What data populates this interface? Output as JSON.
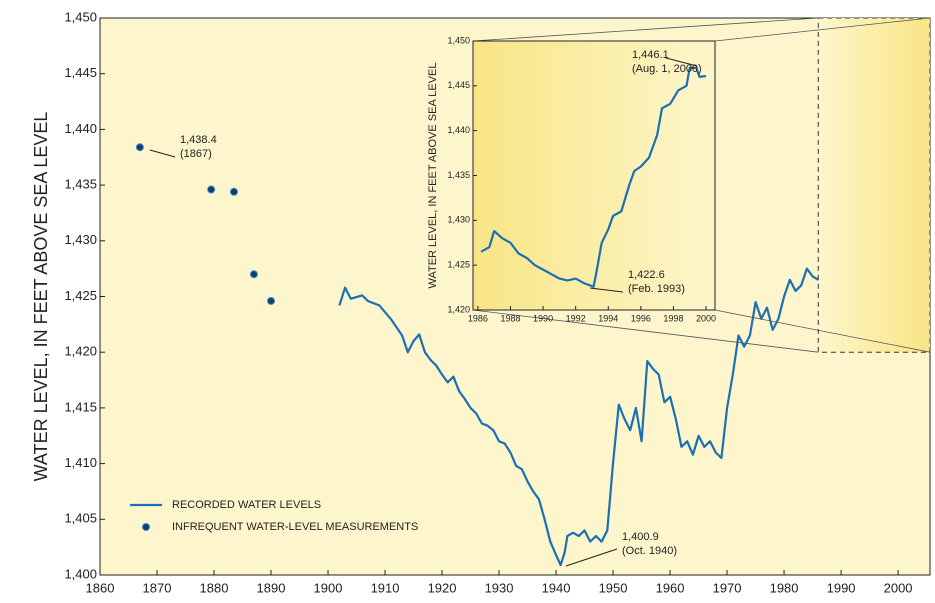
{
  "chart_data": [
    {
      "type": "line",
      "y_label": "WATER LEVEL, IN FEET ABOVE SEA LEVEL",
      "xlim": [
        1860,
        2005.6
      ],
      "ylim": [
        1400,
        1450
      ],
      "xticks": [
        1860,
        1870,
        1880,
        1890,
        1900,
        1910,
        1920,
        1930,
        1940,
        1950,
        1960,
        1970,
        1980,
        1990,
        2000
      ],
      "yticks": [
        {
          "value": 1400,
          "label": "1,400"
        },
        {
          "value": 1405,
          "label": "1,405"
        },
        {
          "value": 1410,
          "label": "1,410"
        },
        {
          "value": 1415,
          "label": "1,415"
        },
        {
          "value": 1420,
          "label": "1,420"
        },
        {
          "value": 1425,
          "label": "1,425"
        },
        {
          "value": 1430,
          "label": "1,430"
        },
        {
          "value": 1435,
          "label": "1,435"
        },
        {
          "value": 1440,
          "label": "1,440"
        },
        {
          "value": 1445,
          "label": "1,445"
        },
        {
          "value": 1450,
          "label": "1,450"
        }
      ],
      "background": "#fdf6cc",
      "series": [
        {
          "name": "RECORDED WATER LEVELS",
          "type": "line",
          "color": "#1a6fb5",
          "x": [
            1902,
            1903,
            1904,
            1906,
            1907,
            1909,
            1911,
            1913,
            1914,
            1915,
            1916,
            1917,
            1918,
            1919,
            1920,
            1921,
            1922,
            1923,
            1924,
            1925,
            1926,
            1927,
            1928,
            1929,
            1930,
            1931,
            1932,
            1933,
            1934,
            1935,
            1936,
            1937,
            1938,
            1939,
            1940,
            1940.8,
            1941.5,
            1942,
            1943,
            1944,
            1945,
            1946,
            1947,
            1948,
            1949,
            1950,
            1951,
            1952,
            1953,
            1954,
            1955,
            1956,
            1957,
            1958,
            1959,
            1960,
            1961,
            1962,
            1963,
            1964,
            1965,
            1966,
            1967,
            1968,
            1969,
            1970,
            1971,
            1972,
            1973,
            1974,
            1975,
            1976,
            1977,
            1978,
            1979,
            1980,
            1981,
            1982,
            1983,
            1984,
            1985,
            1986,
            1987,
            1988,
            1989,
            1990,
            1991,
            1992,
            1993,
            1994,
            1995,
            1996,
            1997,
            1998,
            1999,
            1999.5,
            2000
          ],
          "values": [
            1424.2,
            1425.8,
            1424.8,
            1425.1,
            1424.6,
            1424.2,
            1423,
            1421.5,
            1420,
            1421,
            1421.6,
            1420,
            1419.3,
            1418.8,
            1418,
            1417.3,
            1417.8,
            1416.5,
            1415.8,
            1415,
            1414.5,
            1413.6,
            1413.4,
            1413,
            1412,
            1411.8,
            1411,
            1409.8,
            1409.5,
            1408.4,
            1407.5,
            1406.8,
            1405,
            1403,
            1401.8,
            1400.9,
            1402,
            1403.5,
            1403.8,
            1403.5,
            1404,
            1403,
            1403.5,
            1403,
            1404,
            1410,
            1415.3,
            1414,
            1413,
            1415,
            1412,
            1419.2,
            1418.5,
            1418,
            1415.5,
            1416,
            1414,
            1411.5,
            1412,
            1410.8,
            1412.5,
            1411.5,
            1412,
            1411,
            1410.5,
            1415,
            1418,
            1421.5,
            1420.5,
            1421.5,
            1424.5,
            1423,
            1424,
            1422,
            1423,
            1425,
            1426.5,
            1425.5,
            1426,
            1427.5,
            1426.8,
            1426.5,
            1428.5,
            1427.8,
            1426,
            1424.5,
            1423.5,
            1423.1,
            1422.6,
            1428,
            1431,
            1435.5,
            1438.5,
            1443,
            1445.5,
            1449,
            1448
          ]
        },
        {
          "name": "INFREQUENT WATER-LEVEL MEASUREMENTS",
          "type": "scatter",
          "color": "#163a6b",
          "x": [
            1867,
            1879.5,
            1883.5,
            1887,
            1890
          ],
          "values": [
            1438.4,
            1434.6,
            1434.4,
            1427,
            1424.6
          ]
        }
      ],
      "annotations": [
        {
          "text": [
            "1,438.4",
            "(1867)"
          ]
        },
        {
          "text": [
            "1,400.9",
            "(Oct. 1940)"
          ]
        }
      ]
    },
    {
      "type": "line",
      "y_label": "WATER LEVEL, IN FEET ABOVE SEA LEVEL",
      "xlim": [
        1985.7,
        2000.55
      ],
      "ylim": [
        1420,
        1450
      ],
      "xticks": [
        1986,
        1988,
        1990,
        1992,
        1994,
        1996,
        1998,
        2000
      ],
      "yticks": [
        {
          "value": 1420,
          "label": "1,420"
        },
        {
          "value": 1425,
          "label": "1,425"
        },
        {
          "value": 1430,
          "label": "1,430"
        },
        {
          "value": 1435,
          "label": "1,435"
        },
        {
          "value": 1440,
          "label": "1,440"
        },
        {
          "value": 1445,
          "label": "1,445"
        },
        {
          "value": 1450,
          "label": "1,450"
        }
      ],
      "background": "#f9e98c",
      "series": [
        {
          "type": "line",
          "color": "#1a6fb5",
          "x": [
            1986.2,
            1986.7,
            1987,
            1987.5,
            1988,
            1988.5,
            1989,
            1989.5,
            1990,
            1990.5,
            1991,
            1991.5,
            1992,
            1992.5,
            1993.1,
            1993.3,
            1993.6,
            1994,
            1994.3,
            1994.8,
            1995.3,
            1995.6,
            1996,
            1996.5,
            1997,
            1997.3,
            1997.8,
            1998.3,
            1998.8,
            1999,
            1999.4,
            1999.6,
            2000
          ],
          "values": [
            1426.5,
            1427,
            1428.8,
            1428,
            1427.5,
            1426.3,
            1425.8,
            1425,
            1424.5,
            1424,
            1423.5,
            1423.3,
            1423.5,
            1423,
            1422.6,
            1424.5,
            1427.5,
            1429,
            1430.5,
            1431,
            1434,
            1435.5,
            1436,
            1437,
            1439.5,
            1442.5,
            1443,
            1444.5,
            1445,
            1447,
            1447,
            1446,
            1446.1
          ]
        }
      ],
      "annotations": [
        {
          "text": [
            "1,446.1",
            "(Aug. 1, 2000)"
          ]
        },
        {
          "text": [
            "1,422.6",
            "(Feb. 1993)"
          ]
        }
      ]
    }
  ]
}
